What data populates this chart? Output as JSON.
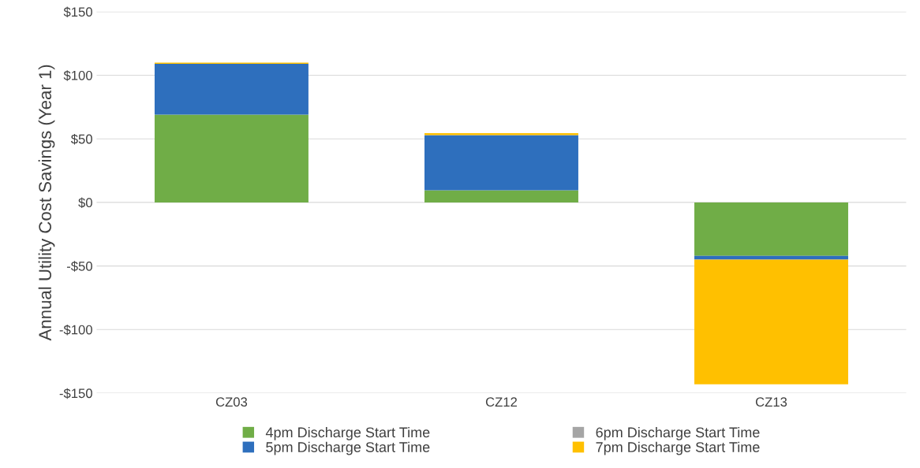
{
  "chart_data": {
    "type": "bar",
    "stacked": true,
    "ylabel": "Annual Utility Cost Savings (Year 1)",
    "categories": [
      "CZ03",
      "CZ12",
      "CZ13"
    ],
    "series": [
      {
        "name": "4pm Discharge Start Time",
        "color": "#70ad47",
        "values": [
          69,
          9.5,
          -42
        ]
      },
      {
        "name": "5pm Discharge Start Time",
        "color": "#2e6fbd",
        "values": [
          40,
          43.5,
          -3
        ]
      },
      {
        "name": "6pm Discharge Start Time",
        "color": "#a5a5a5",
        "values": [
          0,
          0,
          0
        ]
      },
      {
        "name": "7pm Discharge Start Time",
        "color": "#ffc000",
        "values": [
          1,
          1.5,
          -98
        ]
      }
    ],
    "ylim": [
      -150,
      150
    ],
    "yticks": [
      {
        "value": -150,
        "label": "-$150"
      },
      {
        "value": -100,
        "label": "-$100"
      },
      {
        "value": -50,
        "label": "-$50"
      },
      {
        "value": 0,
        "label": "$0"
      },
      {
        "value": 50,
        "label": "$50"
      },
      {
        "value": 100,
        "label": "$100"
      },
      {
        "value": 150,
        "label": "$150"
      }
    ],
    "grid": "y",
    "legend": "bottom"
  }
}
